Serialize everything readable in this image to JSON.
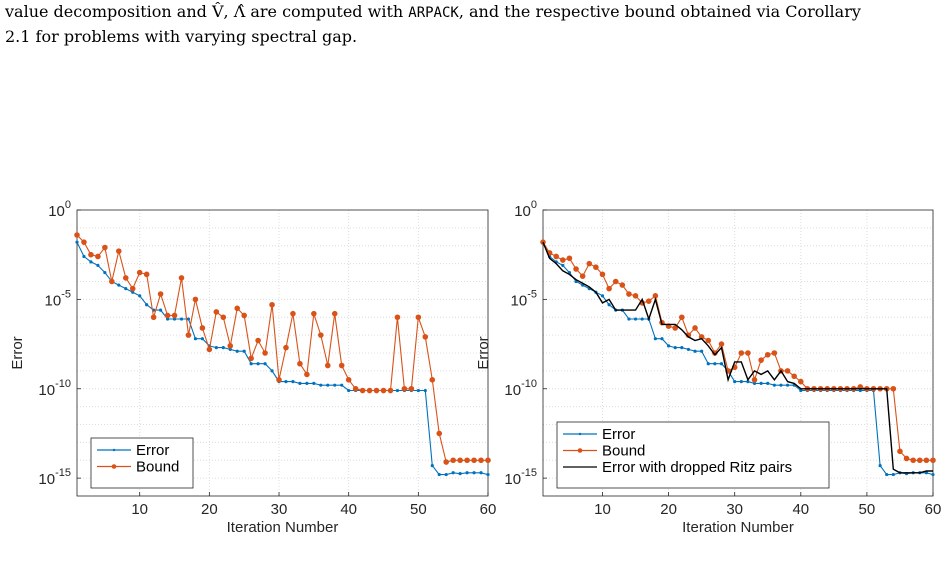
{
  "caption": {
    "line1_pre": "value decomposition and ",
    "line1_mid": " are computed with ",
    "line1_code": "ARPACK",
    "line1_post": ", and the respective bound obtained via Corollary",
    "line2": "2.1 for problems with varying spectral gap.",
    "symbols": "V̂, Λ̂"
  },
  "colors": {
    "error": "#0072BD",
    "bound": "#D95319",
    "dropped": "#000000",
    "grid": "#dcdcdc"
  },
  "chart_data": [
    {
      "type": "line",
      "xlabel": "Iteration Number",
      "ylabel": "Error",
      "xlim": [
        1,
        60
      ],
      "ylim_log10": [
        -16,
        0
      ],
      "yscale": "log",
      "xticks": [
        10,
        20,
        30,
        40,
        50,
        60
      ],
      "yticks": [
        {
          "exp": "0",
          "value": 0
        },
        {
          "exp": "-5",
          "value": -5
        },
        {
          "exp": "-10",
          "value": -10
        },
        {
          "exp": "-15",
          "value": -15
        }
      ],
      "grid": true,
      "legend_position": "bottom-left",
      "legend": [
        "Error",
        "Bound"
      ],
      "series": [
        {
          "name": "Error",
          "marker": "dot",
          "log10_values": [
            -1.8,
            -2.6,
            -2.9,
            -3.1,
            -3.5,
            -4.0,
            -4.2,
            -4.4,
            -4.6,
            -4.8,
            -5.3,
            -5.6,
            -5.6,
            -6.1,
            -6.1,
            -6.1,
            -6.1,
            -7.2,
            -7.2,
            -7.6,
            -7.7,
            -7.7,
            -7.8,
            -7.9,
            -7.9,
            -8.6,
            -8.6,
            -8.6,
            -9.0,
            -9.6,
            -9.6,
            -9.6,
            -9.7,
            -9.7,
            -9.7,
            -9.8,
            -9.8,
            -9.8,
            -9.8,
            -10.1,
            -10.1,
            -10.1,
            -10.1,
            -10.1,
            -10.1,
            -10.1,
            -10.1,
            -10.1,
            -10.1,
            -10.1,
            -10.1,
            -14.3,
            -14.8,
            -14.8,
            -14.7,
            -14.75,
            -14.7,
            -14.7,
            -14.7,
            -14.8
          ]
        },
        {
          "name": "Bound",
          "marker": "circle",
          "log10_values": [
            -1.4,
            -1.8,
            -2.5,
            -2.6,
            -2.1,
            -4.0,
            -2.3,
            -3.8,
            -4.4,
            -3.5,
            -3.6,
            -6.0,
            -4.7,
            -5.9,
            -5.9,
            -3.8,
            -7.0,
            -5.0,
            -6.6,
            -7.8,
            -5.7,
            -6.0,
            -7.6,
            -5.5,
            -5.9,
            -8.3,
            -7.3,
            -8.0,
            -5.3,
            -9.5,
            -7.7,
            -5.8,
            -8.6,
            -9.2,
            -5.8,
            -7.0,
            -8.7,
            -5.8,
            -8.7,
            -9.5,
            -10.0,
            -10.1,
            -10.1,
            -10.1,
            -10.1,
            -10.1,
            -6.0,
            -10.0,
            -10.0,
            -6.0,
            -7.1,
            -9.5,
            -12.5,
            -14.1,
            -14.0,
            -14.0,
            -14.0,
            -14.0,
            -14.0,
            -14.0
          ]
        }
      ]
    },
    {
      "type": "line",
      "xlabel": "Iteration Number",
      "ylabel": "Error",
      "xlim": [
        1,
        60
      ],
      "ylim_log10": [
        -16,
        0
      ],
      "yscale": "log",
      "xticks": [
        10,
        20,
        30,
        40,
        50,
        60
      ],
      "yticks": [
        {
          "exp": "0",
          "value": 0
        },
        {
          "exp": "-5",
          "value": -5
        },
        {
          "exp": "-10",
          "value": -10
        },
        {
          "exp": "-15",
          "value": -15
        }
      ],
      "grid": true,
      "legend_position": "bottom-left",
      "legend": [
        "Error",
        "Bound",
        "Error with dropped Ritz pairs"
      ],
      "series": [
        {
          "name": "Error",
          "marker": "dot",
          "log10_values": [
            -1.8,
            -2.6,
            -2.9,
            -3.1,
            -3.5,
            -4.0,
            -4.2,
            -4.4,
            -4.6,
            -4.8,
            -5.3,
            -5.6,
            -5.6,
            -6.1,
            -6.1,
            -6.1,
            -6.1,
            -7.2,
            -7.2,
            -7.6,
            -7.7,
            -7.7,
            -7.8,
            -7.9,
            -7.9,
            -8.6,
            -8.6,
            -8.6,
            -9.0,
            -9.6,
            -9.6,
            -9.6,
            -9.7,
            -9.7,
            -9.7,
            -9.8,
            -9.8,
            -9.8,
            -9.8,
            -10.1,
            -10.1,
            -10.1,
            -10.1,
            -10.1,
            -10.1,
            -10.1,
            -10.1,
            -10.1,
            -10.1,
            -10.1,
            -10.1,
            -14.3,
            -14.8,
            -14.8,
            -14.7,
            -14.75,
            -14.7,
            -14.7,
            -14.7,
            -14.8
          ]
        },
        {
          "name": "Bound",
          "marker": "circle",
          "log10_values": [
            -1.8,
            -2.4,
            -2.6,
            -2.8,
            -2.7,
            -3.3,
            -3.7,
            -3.0,
            -3.2,
            -3.6,
            -4.4,
            -4.0,
            -4.2,
            -4.7,
            -4.8,
            -5.2,
            -5.1,
            -4.8,
            -6.3,
            -6.5,
            -6.6,
            -6.0,
            -7.0,
            -6.6,
            -7.1,
            -7.3,
            -8.0,
            -7.5,
            -9.0,
            -8.8,
            -8.0,
            -8.0,
            -9.5,
            -8.4,
            -8.1,
            -8.0,
            -9.0,
            -9.0,
            -9.3,
            -9.6,
            -10.0,
            -10.0,
            -10.0,
            -10.0,
            -10.0,
            -10.0,
            -10.0,
            -10.0,
            -9.9,
            -10.0,
            -10.0,
            -10.0,
            -10.0,
            -10.0,
            -13.5,
            -13.9,
            -14.0,
            -14.0,
            -14.0,
            -14.0
          ]
        },
        {
          "name": "Error with dropped Ritz pairs",
          "marker": "none",
          "log10_values": [
            -1.8,
            -2.7,
            -3.0,
            -3.4,
            -3.6,
            -3.9,
            -4.1,
            -4.3,
            -4.6,
            -5.2,
            -5.0,
            -5.6,
            -5.6,
            -5.6,
            -5.6,
            -5.0,
            -6.1,
            -5.0,
            -6.4,
            -6.4,
            -6.4,
            -6.7,
            -7.1,
            -7.3,
            -7.2,
            -7.6,
            -8.1,
            -7.7,
            -9.5,
            -8.5,
            -8.5,
            -9.5,
            -9.0,
            -9.2,
            -9.0,
            -9.5,
            -9.0,
            -9.6,
            -9.7,
            -10.0,
            -10.0,
            -10.0,
            -10.0,
            -10.0,
            -10.0,
            -10.0,
            -10.0,
            -10.0,
            -10.0,
            -10.0,
            -10.0,
            -10.0,
            -10.0,
            -14.5,
            -14.7,
            -14.7,
            -14.7,
            -14.7,
            -14.6,
            -14.6
          ]
        }
      ]
    }
  ]
}
